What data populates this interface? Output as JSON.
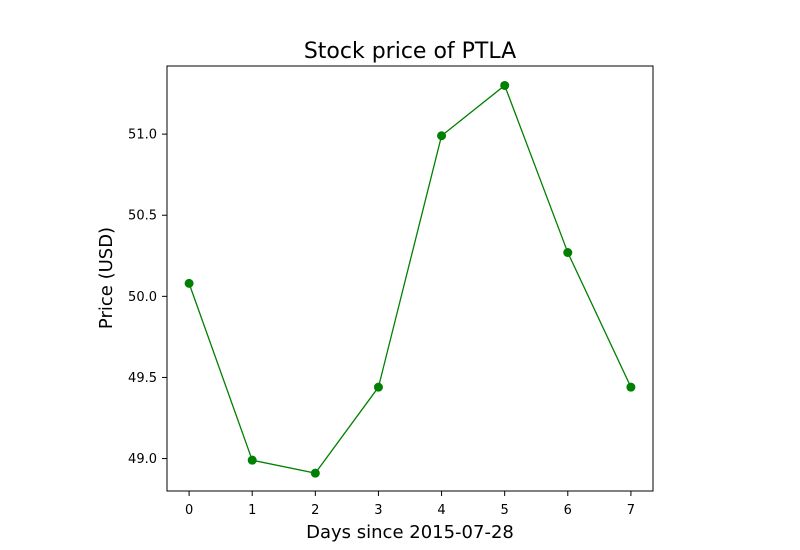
{
  "chart_data": {
    "type": "line",
    "title": "Stock price of PTLA",
    "xlabel": "Days since 2015-07-28",
    "ylabel": "Price (USD)",
    "x": [
      0,
      1,
      2,
      3,
      4,
      5,
      6,
      7
    ],
    "series": [
      {
        "values": [
          50.08,
          48.99,
          48.91,
          49.44,
          50.99,
          51.3,
          50.27,
          49.44
        ]
      }
    ],
    "xticks": [
      "0",
      "1",
      "2",
      "3",
      "4",
      "5",
      "6",
      "7"
    ],
    "yticks": [
      "49.0",
      "49.5",
      "50.0",
      "50.5",
      "51.0"
    ],
    "xlim": [
      -0.35,
      7.35
    ],
    "ylim": [
      48.8,
      51.42
    ],
    "color": "#008000",
    "marker": "circle",
    "grid": false,
    "legend": "none"
  }
}
